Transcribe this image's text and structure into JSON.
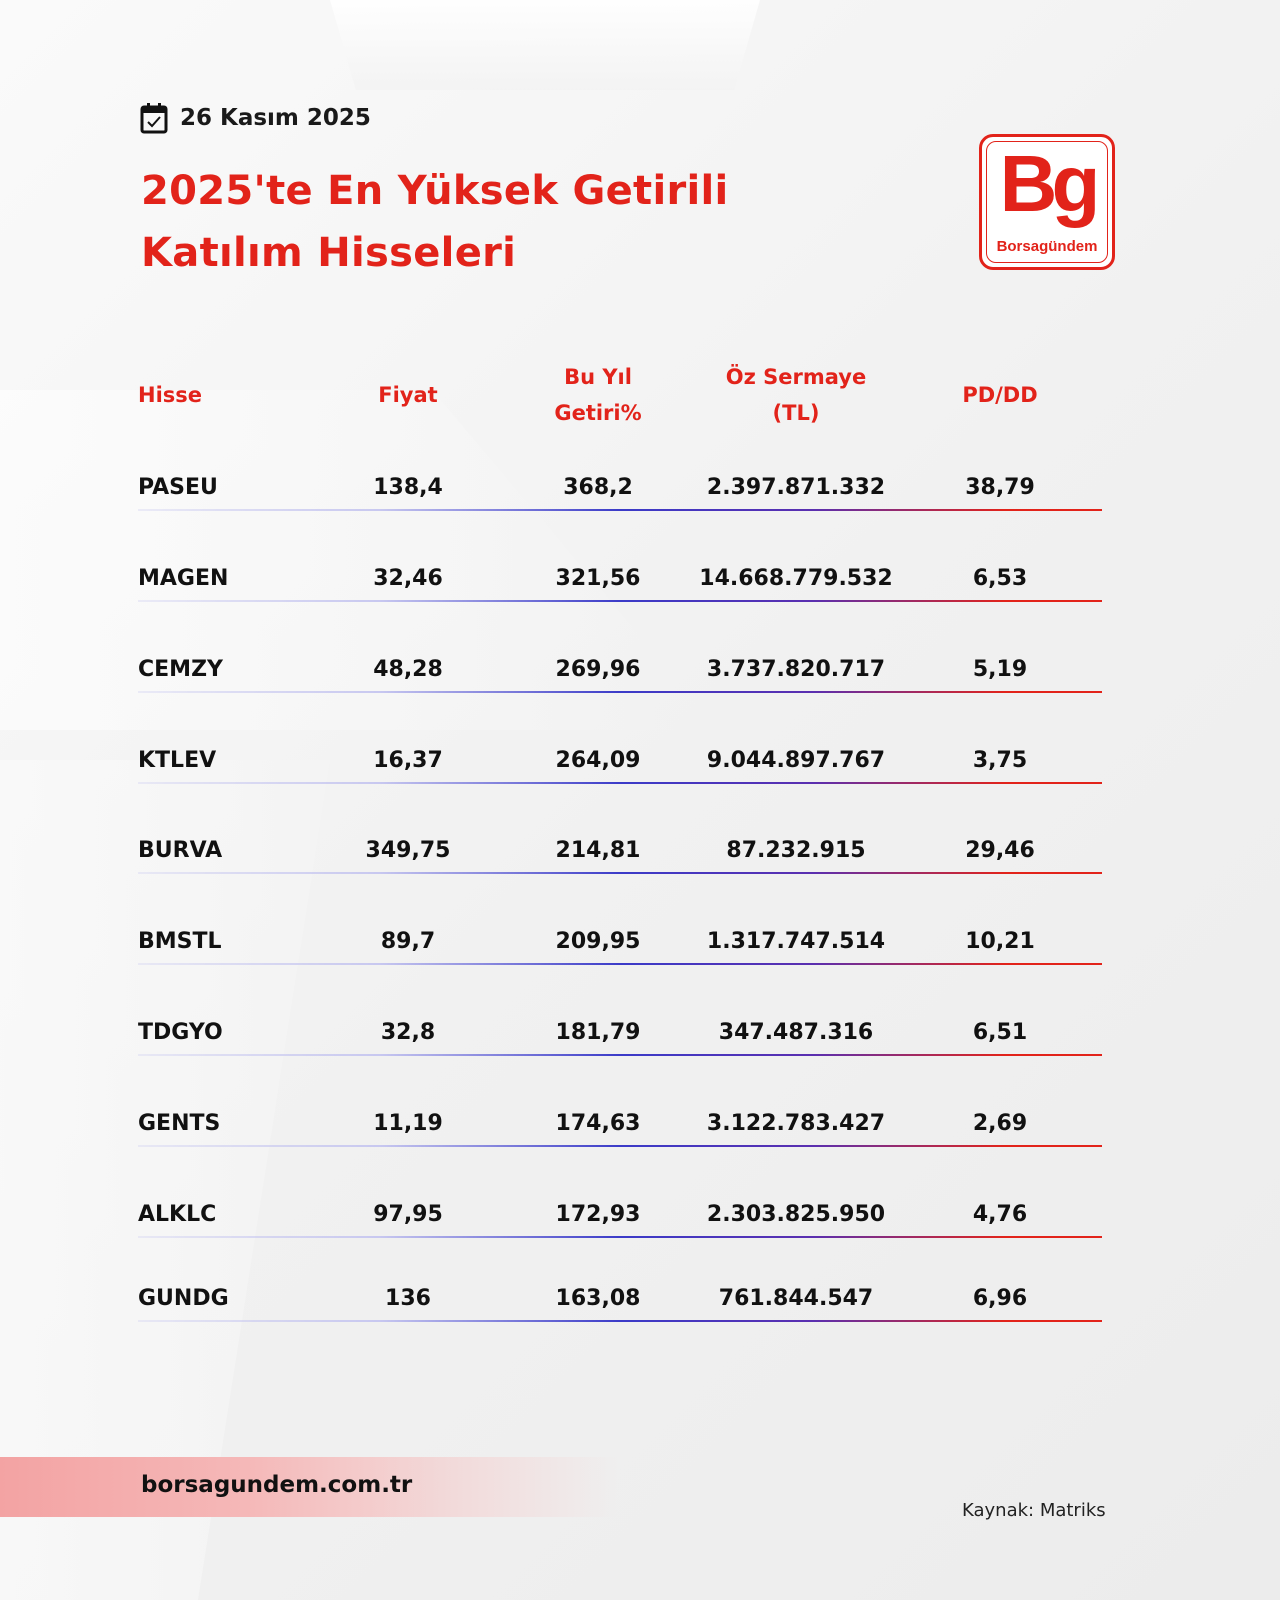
{
  "date": "26 Kasım 2025",
  "title_line1": "2025'te En Yüksek Getirili",
  "title_line2": "Katılım Hisseleri",
  "logo": {
    "letters": "Bg",
    "name": "Borsagündem"
  },
  "colors": {
    "accent": "#e2231a",
    "text": "#111111"
  },
  "table": {
    "headers": {
      "hisse": "Hisse",
      "fiyat": "Fiyat",
      "getiri_1": "Bu Yıl",
      "getiri_2": "Getiri%",
      "oz_1": "Öz Sermaye",
      "oz_2": "(TL)",
      "pddd": "PD/DD"
    },
    "rows": [
      [
        "PASEU",
        "138,4",
        "368,2",
        "2.397.871.332",
        "38,79"
      ],
      [
        "MAGEN",
        "32,46",
        "321,56",
        "14.668.779.532",
        "6,53"
      ],
      [
        "CEMZY",
        "48,28",
        "269,96",
        "3.737.820.717",
        "5,19"
      ],
      [
        "KTLEV",
        "16,37",
        "264,09",
        "9.044.897.767",
        "3,75"
      ],
      [
        "BURVA",
        "349,75",
        "214,81",
        "87.232.915",
        "29,46"
      ],
      [
        "BMSTL",
        "89,7",
        "209,95",
        "1.317.747.514",
        "10,21"
      ],
      [
        "TDGYO",
        "32,8",
        "181,79",
        "347.487.316",
        "6,51"
      ],
      [
        "GENTS",
        "11,19",
        "174,63",
        "3.122.783.427",
        "2,69"
      ],
      [
        "ALKLC",
        "97,95",
        "172,93",
        "2.303.825.950",
        "4,76"
      ],
      [
        "GUNDG",
        "136",
        "163,08",
        "761.844.547",
        "6,96"
      ]
    ]
  },
  "footer": {
    "website": "borsagundem.com.tr",
    "source": "Kaynak:  Matriks"
  }
}
